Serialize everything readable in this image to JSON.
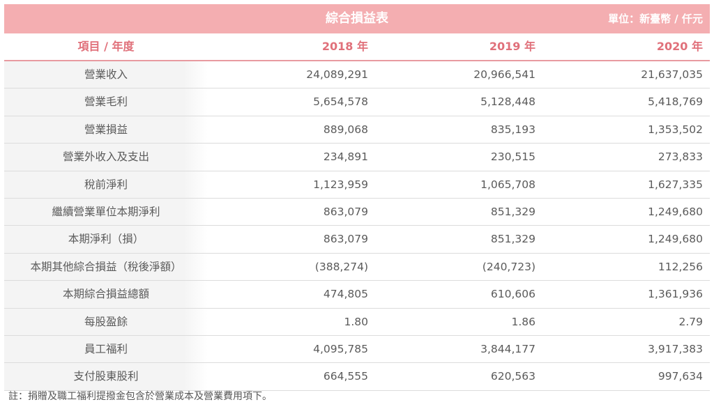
{
  "header": {
    "title": "綜合損益表",
    "unit": "單位：新臺幣 / 仟元"
  },
  "columns": [
    "項目 / 年度",
    "2018 年",
    "2019 年",
    "2020 年"
  ],
  "rows": [
    {
      "label": "營業收入",
      "values": [
        "24,089,291",
        "20,966,541",
        "21,637,035"
      ]
    },
    {
      "label": "營業毛利",
      "values": [
        "5,654,578",
        "5,128,448",
        "5,418,769"
      ]
    },
    {
      "label": "營業損益",
      "values": [
        "889,068",
        "835,193",
        "1,353,502"
      ]
    },
    {
      "label": "營業外收入及支出",
      "values": [
        "234,891",
        "230,515",
        "273,833"
      ]
    },
    {
      "label": "稅前淨利",
      "values": [
        "1,123,959",
        "1,065,708",
        "1,627,335"
      ]
    },
    {
      "label": "繼續營業單位本期淨利",
      "values": [
        "863,079",
        "851,329",
        "1,249,680"
      ]
    },
    {
      "label": "本期淨利（損）",
      "values": [
        "863,079",
        "851,329",
        "1,249,680"
      ]
    },
    {
      "label": "本期其他綜合損益（稅後淨額）",
      "values": [
        "(388,274)",
        "(240,723)",
        "112,256"
      ]
    },
    {
      "label": "本期綜合損益總額",
      "values": [
        "474,805",
        "610,606",
        "1,361,936"
      ]
    },
    {
      "label": "每股盈餘",
      "values": [
        "1.80",
        "1.86",
        "2.79"
      ]
    },
    {
      "label": "員工福利",
      "values": [
        "4,095,785",
        "3,844,177",
        "3,917,383"
      ]
    },
    {
      "label": "支付股東股利",
      "values": [
        "664,555",
        "620,563",
        "997,634"
      ]
    }
  ],
  "note": "註：捐贈及職工福利提撥金包含於營業成本及營業費用項下。",
  "colors": {
    "header_bg": "#f4aeb1",
    "column_header_text": "#e0707a"
  }
}
